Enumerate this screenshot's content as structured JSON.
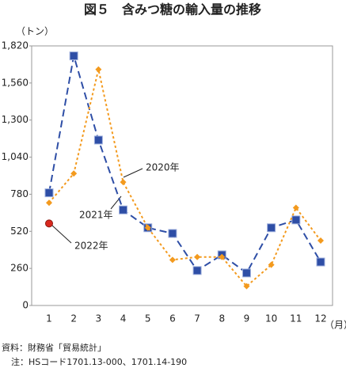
{
  "chart_data": {
    "type": "line",
    "title": "図５　含みつ糖の輸入量の推移",
    "y_unit": "（トン）",
    "x_unit": "（月）",
    "categories": [
      "1",
      "2",
      "3",
      "4",
      "5",
      "6",
      "7",
      "8",
      "9",
      "10",
      "11",
      "12"
    ],
    "series": [
      {
        "name": "2021年",
        "color": "#2e4ea6",
        "marker": "square",
        "dash": "dashed",
        "values": [
          790,
          1750,
          1160,
          670,
          545,
          505,
          245,
          355,
          228,
          545,
          600,
          305
        ]
      },
      {
        "name": "2020年",
        "color": "#f39a1e",
        "marker": "diamond",
        "dash": "dotted",
        "values": [
          720,
          925,
          1655,
          865,
          545,
          320,
          340,
          340,
          135,
          285,
          685,
          455
        ]
      },
      {
        "name": "2022年",
        "color": "#d9281e",
        "marker": "circle",
        "dash": "solid",
        "values": [
          575,
          null,
          null,
          null,
          null,
          null,
          null,
          null,
          null,
          null,
          null,
          null
        ]
      }
    ],
    "ylim": [
      0,
      1820
    ],
    "yticks": [
      0,
      260,
      520,
      780,
      {
        "value": 1040,
        "label": "1,040"
      },
      {
        "value": 1300,
        "label": "1,300"
      },
      {
        "value": 1560,
        "label": "1,560"
      },
      {
        "value": 1820,
        "label": "1,820"
      }
    ],
    "grid": false,
    "notes": [
      "資料：財務省「貿易統計」",
      "注：HSコード1701.13-000、1701.14-190"
    ]
  }
}
